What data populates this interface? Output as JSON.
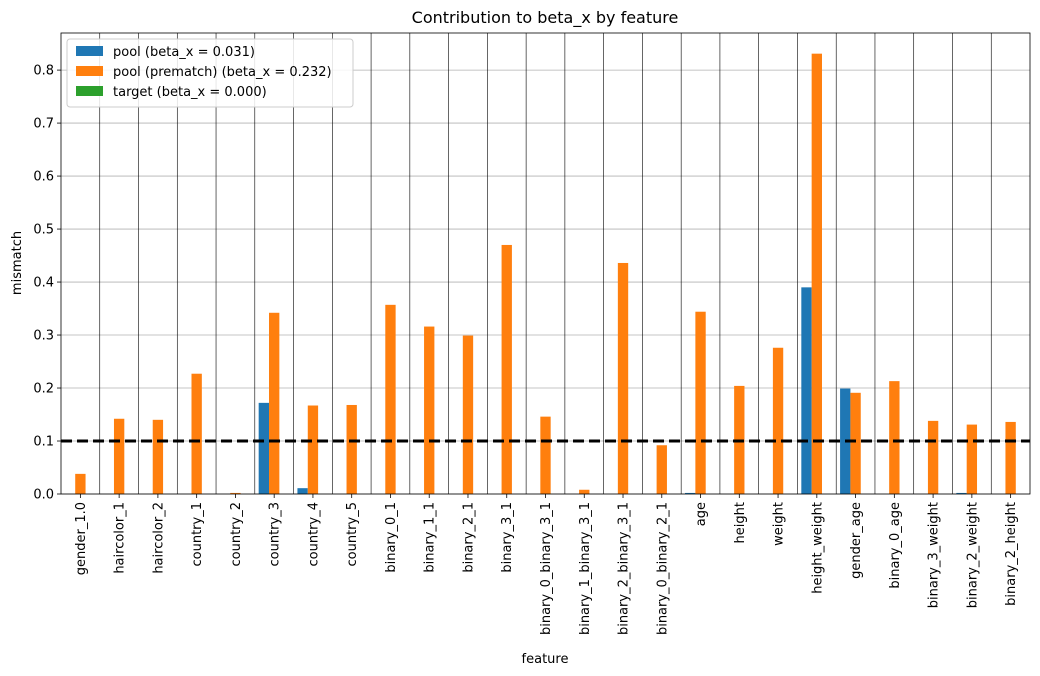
{
  "chart_data": {
    "type": "bar",
    "title": "Contribution to beta_x by feature",
    "xlabel": "feature",
    "ylabel": "mismatch",
    "ylim": [
      0,
      0.87
    ],
    "yticks": [
      "0.0",
      "0.1",
      "0.2",
      "0.3",
      "0.4",
      "0.5",
      "0.6",
      "0.7",
      "0.8"
    ],
    "ytick_values": [
      0,
      0.1,
      0.2,
      0.3,
      0.4,
      0.5,
      0.6,
      0.7,
      0.8
    ],
    "grid": true,
    "legend_position": "top-left",
    "reference_line": {
      "y": 0.1,
      "style": "dashed",
      "color": "#000000"
    },
    "categories": [
      "gender_1.0",
      "haircolor_1",
      "haircolor_2",
      "country_1",
      "country_2",
      "country_3",
      "country_4",
      "country_5",
      "binary_0_1",
      "binary_1_1",
      "binary_2_1",
      "binary_3_1",
      "binary_0_binary_3_1",
      "binary_1_binary_3_1",
      "binary_2_binary_3_1",
      "binary_0_binary_2_1",
      "age",
      "height",
      "weight",
      "height_weight",
      "gender_age",
      "binary_0_age",
      "binary_3_weight",
      "binary_2_weight",
      "binary_2_height"
    ],
    "series": [
      {
        "name": "pool (beta_x = 0.031)",
        "color": "#1f77b4",
        "values": [
          0,
          0,
          0,
          0,
          0,
          0.172,
          0.011,
          0,
          0,
          0,
          0,
          0,
          0,
          0,
          0,
          0,
          0.002,
          0,
          0,
          0.39,
          0.199,
          0,
          0,
          0.002,
          0
        ]
      },
      {
        "name": "pool (prematch) (beta_x = 0.232)",
        "color": "#ff7f0e",
        "values": [
          0.038,
          0.142,
          0.14,
          0.227,
          0.002,
          0.342,
          0.167,
          0.168,
          0.357,
          0.316,
          0.299,
          0.47,
          0.146,
          0.008,
          0.436,
          0.092,
          0.344,
          0.204,
          0.276,
          0.831,
          0.191,
          0.213,
          0.138,
          0.131,
          0.136
        ]
      },
      {
        "name": "target (beta_x = 0.000)",
        "color": "#2ca02c",
        "values": [
          0,
          0,
          0,
          0,
          0,
          0,
          0,
          0,
          0,
          0,
          0,
          0,
          0,
          0,
          0,
          0,
          0,
          0,
          0,
          0,
          0,
          0,
          0,
          0,
          0
        ]
      }
    ]
  }
}
